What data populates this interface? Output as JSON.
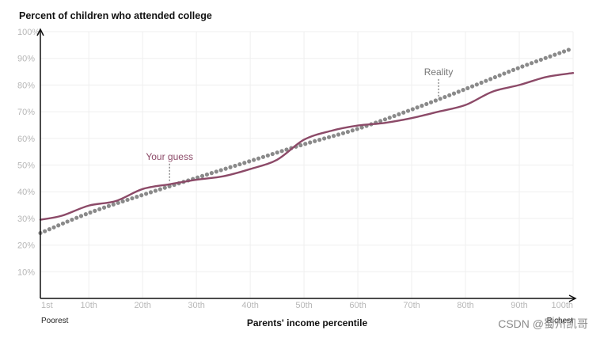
{
  "chart_data": {
    "type": "line",
    "title": "Percent of children who attended college",
    "xlabel": "Parents' income percentile",
    "ylabel": "",
    "xlim": [
      1,
      100
    ],
    "ylim": [
      0,
      100
    ],
    "grid": true,
    "x_ticks": [
      {
        "value": 1,
        "label": "1st"
      },
      {
        "value": 10,
        "label": "10th"
      },
      {
        "value": 20,
        "label": "20th"
      },
      {
        "value": 30,
        "label": "30th"
      },
      {
        "value": 40,
        "label": "40th"
      },
      {
        "value": 50,
        "label": "50th"
      },
      {
        "value": 60,
        "label": "60th"
      },
      {
        "value": 70,
        "label": "70th"
      },
      {
        "value": 80,
        "label": "80th"
      },
      {
        "value": 90,
        "label": "90th"
      },
      {
        "value": 100,
        "label": "100th"
      }
    ],
    "y_ticks": [
      {
        "value": 10,
        "label": "10%"
      },
      {
        "value": 20,
        "label": "20%"
      },
      {
        "value": 30,
        "label": "30%"
      },
      {
        "value": 40,
        "label": "40%"
      },
      {
        "value": 50,
        "label": "50%"
      },
      {
        "value": 60,
        "label": "60%"
      },
      {
        "value": 70,
        "label": "70%"
      },
      {
        "value": 80,
        "label": "80%"
      },
      {
        "value": 90,
        "label": "90%"
      },
      {
        "value": 100,
        "label": "100%"
      }
    ],
    "x_end_labels": {
      "left": "Poorest",
      "right": "Richest"
    },
    "series": [
      {
        "name": "Your guess",
        "style": "solid",
        "color": "#8c4a68",
        "x": [
          1,
          5,
          10,
          15,
          20,
          25,
          30,
          35,
          40,
          45,
          50,
          55,
          60,
          65,
          70,
          75,
          80,
          85,
          90,
          95,
          100
        ],
        "y": [
          29.5,
          31,
          34.8,
          36.5,
          41,
          42.8,
          44.5,
          45.8,
          48.5,
          52,
          59.5,
          62.8,
          64.8,
          65.8,
          67.6,
          70,
          72.5,
          77.5,
          80,
          83,
          84.5
        ]
      },
      {
        "name": "Reality",
        "style": "dotted",
        "color": "#8a8a8a",
        "x": [
          1,
          10,
          20,
          30,
          40,
          50,
          60,
          70,
          80,
          90,
          100
        ],
        "y": [
          24.5,
          32,
          38.8,
          45.2,
          51.5,
          57.8,
          63.6,
          70.8,
          78.5,
          86.5,
          93.8
        ]
      }
    ],
    "annotations": [
      {
        "text": "Your guess",
        "series": "Your guess",
        "x": 25,
        "y": 42.8,
        "color": "#8c4a68"
      },
      {
        "text": "Reality",
        "series": "Reality",
        "x": 75,
        "y": 74.5,
        "color": "#777777"
      }
    ]
  },
  "watermark": "CSDN @蜀州凯哥"
}
